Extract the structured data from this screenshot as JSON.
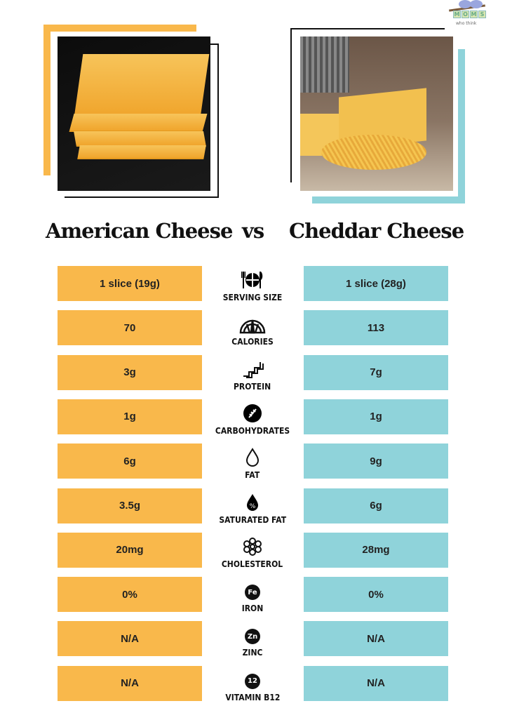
{
  "logo": {
    "letters": [
      "M",
      "O",
      "M",
      "S"
    ],
    "tagline": "who think"
  },
  "header": {
    "left_title": "American Cheese",
    "vs": "vs",
    "right_title": "Cheddar Cheese"
  },
  "colors": {
    "american": "#f9b84b",
    "cheddar": "#8fd3da"
  },
  "rows": [
    {
      "label": "SERVING SIZE",
      "icon": "plate-cutlery-icon",
      "american": "1 slice (19g)",
      "cheddar": "1 slice (28g)"
    },
    {
      "label": "CALORIES",
      "icon": "gauge-icon",
      "american": "70",
      "cheddar": "113"
    },
    {
      "label": "PROTEIN",
      "icon": "protein-strand-icon",
      "american": "3g",
      "cheddar": "7g"
    },
    {
      "label": "CARBOHYDRATES",
      "icon": "wheat-icon",
      "american": "1g",
      "cheddar": "1g"
    },
    {
      "label": "FAT",
      "icon": "drop-icon",
      "american": "6g",
      "cheddar": "9g"
    },
    {
      "label": "SATURATED FAT",
      "icon": "percent-drop-icon",
      "american": "3.5g",
      "cheddar": "6g"
    },
    {
      "label": "CHOLESTEROL",
      "icon": "molecule-icon",
      "american": "20mg",
      "cheddar": "28mg"
    },
    {
      "label": "IRON",
      "icon": "fe-badge-icon",
      "badge": "Fe",
      "american": "0%",
      "cheddar": "0%"
    },
    {
      "label": "ZINC",
      "icon": "zn-badge-icon",
      "badge": "Zn",
      "american": "N/A",
      "cheddar": "N/A"
    },
    {
      "label": "VITAMIN B12",
      "icon": "b12-badge-icon",
      "badge": "12",
      "american": "N/A",
      "cheddar": "N/A"
    }
  ]
}
